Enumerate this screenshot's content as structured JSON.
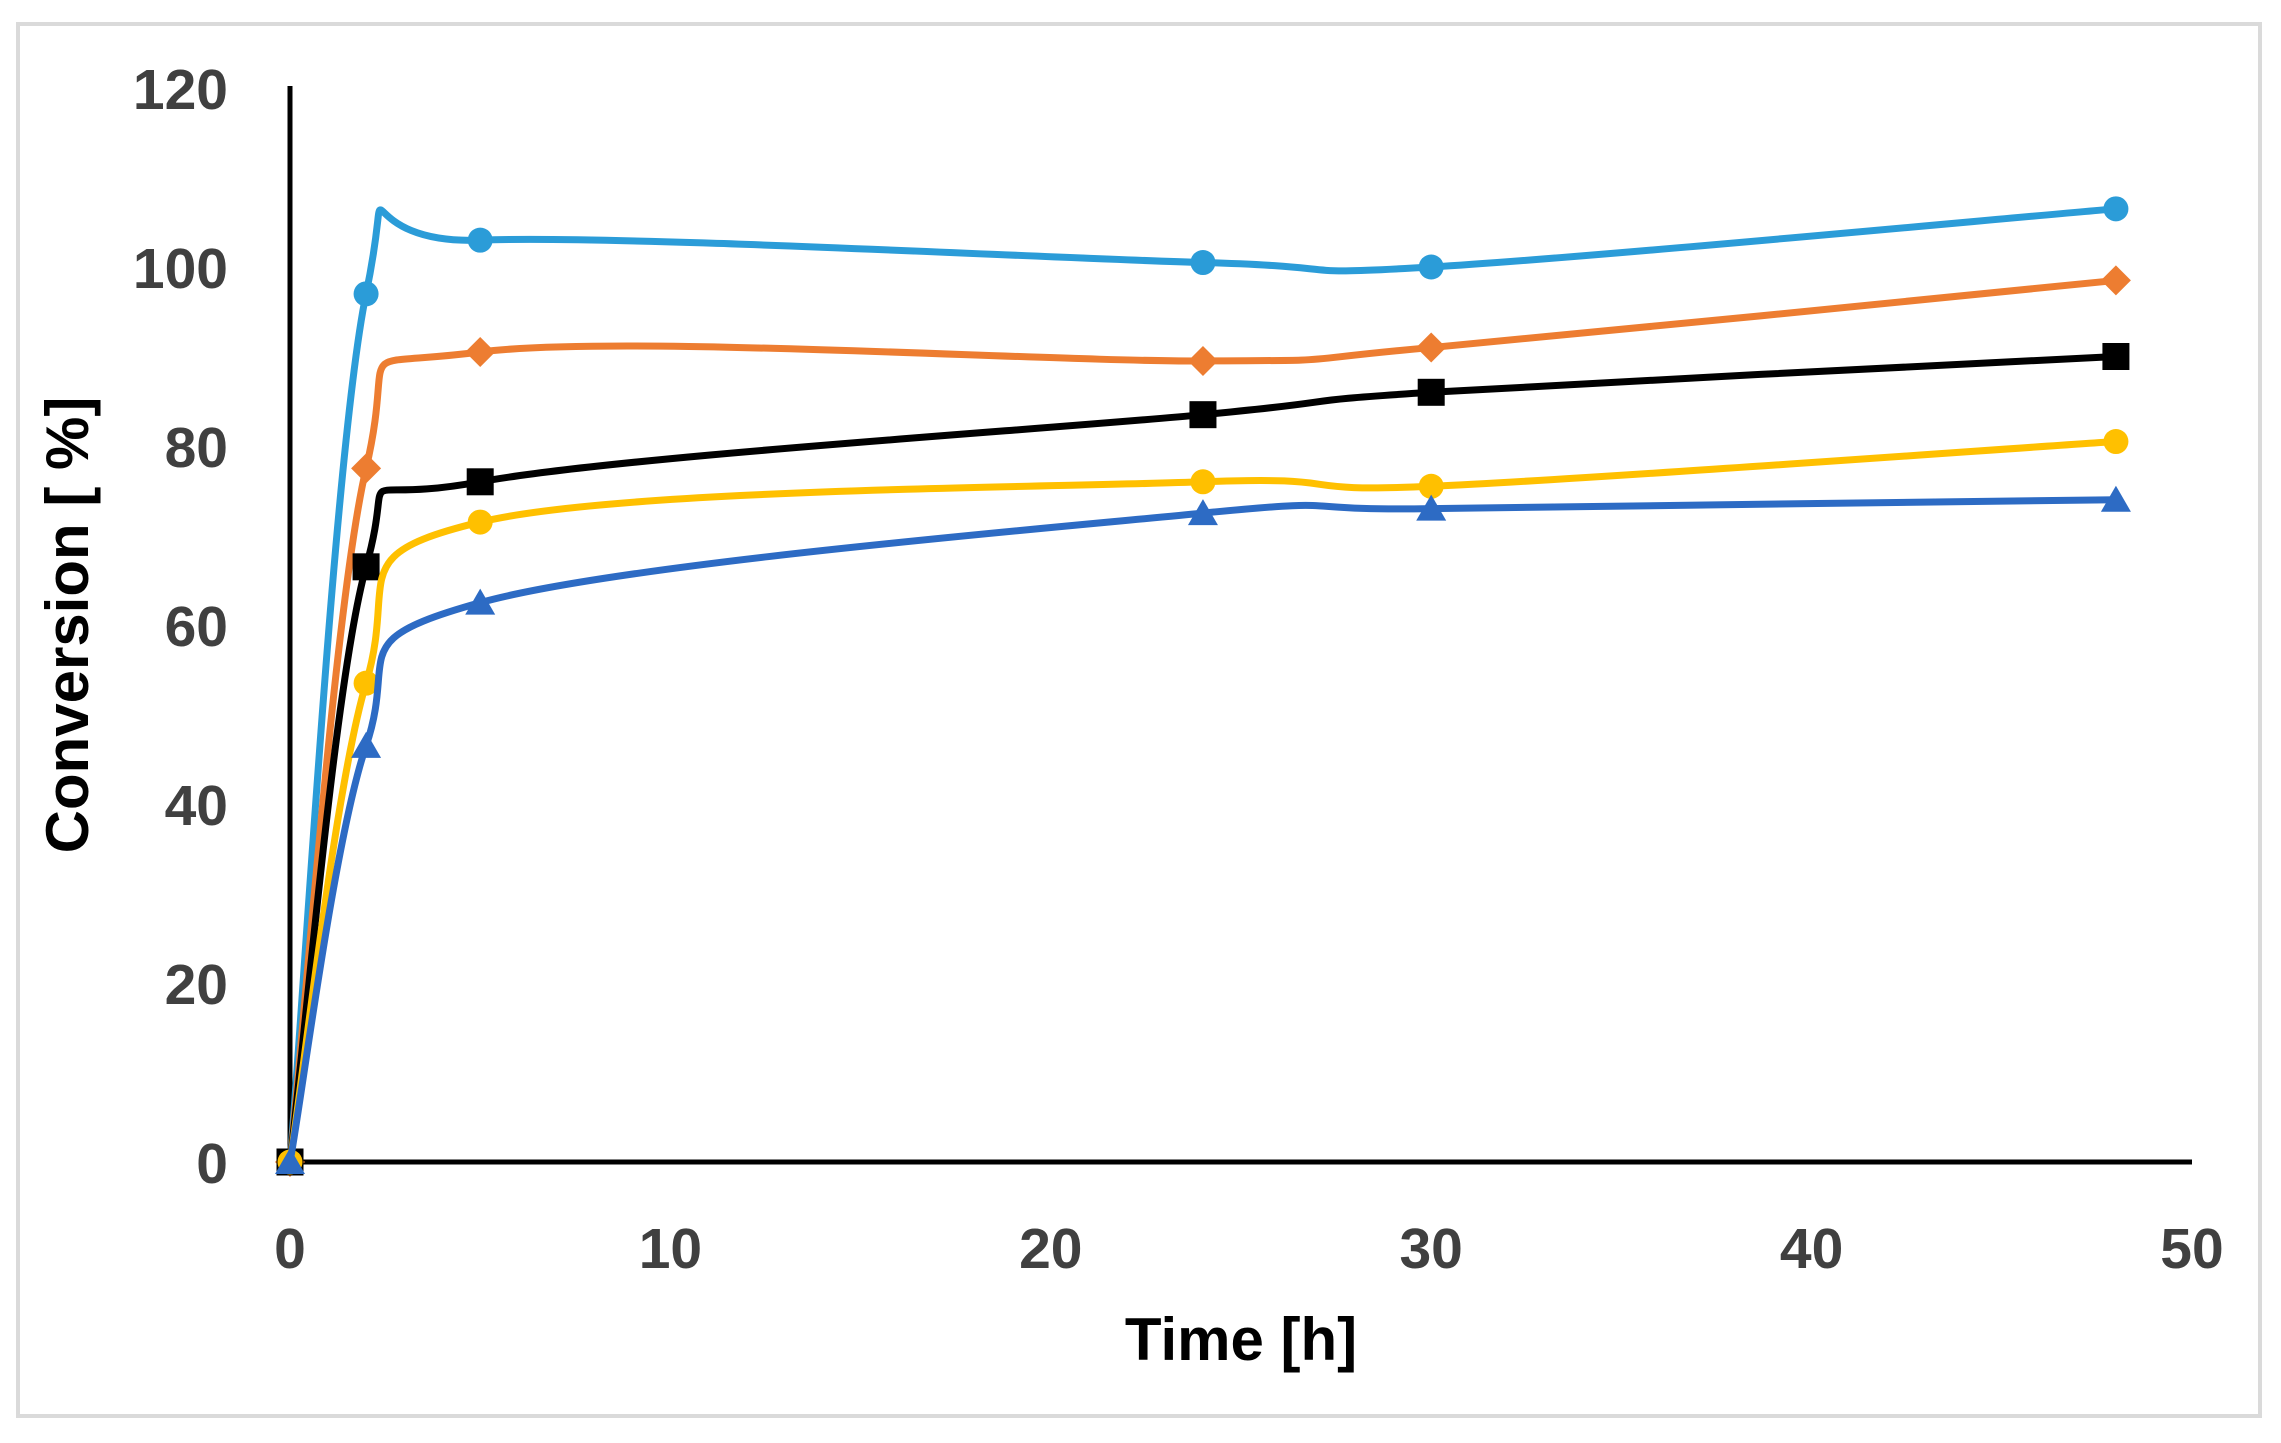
{
  "figure": {
    "background_color": "#FFFFFF",
    "border_color": "#DADADA",
    "axis_line_color": "#000000",
    "tick_label_color": "#404040",
    "axis_title_color": "#000000"
  },
  "chart_data": {
    "type": "line",
    "smoothed": true,
    "title": "",
    "xlabel": "Time [h]",
    "ylabel": "Conversion [ %]",
    "xlim": [
      0,
      50
    ],
    "ylim": [
      0,
      120
    ],
    "x_ticks": [
      0,
      10,
      20,
      30,
      40,
      50
    ],
    "y_ticks": [
      0,
      20,
      40,
      60,
      80,
      100,
      120
    ],
    "grid": false,
    "legend": false,
    "x": [
      0,
      2,
      5,
      24,
      30,
      48
    ],
    "series": [
      {
        "name": "light-blue-circles",
        "marker": "circle",
        "color": "#2B9CD8",
        "values": [
          0,
          97,
          103,
          100.5,
          100,
          106.5
        ]
      },
      {
        "name": "orange-diamonds",
        "marker": "diamond",
        "color": "#ED7D31",
        "values": [
          0,
          77.5,
          90.5,
          89.5,
          91,
          98.5
        ]
      },
      {
        "name": "black-squares",
        "marker": "square",
        "color": "#000000",
        "values": [
          0,
          66.5,
          76,
          83.5,
          86,
          90
        ]
      },
      {
        "name": "yellow-circles",
        "marker": "circle",
        "color": "#FFC000",
        "values": [
          0,
          53.5,
          71.5,
          76,
          75.5,
          80.5
        ]
      },
      {
        "name": "blue-triangles",
        "marker": "triangle",
        "color": "#2D6BC4",
        "values": [
          0,
          46.5,
          62.5,
          72.5,
          73,
          74
        ]
      }
    ]
  }
}
